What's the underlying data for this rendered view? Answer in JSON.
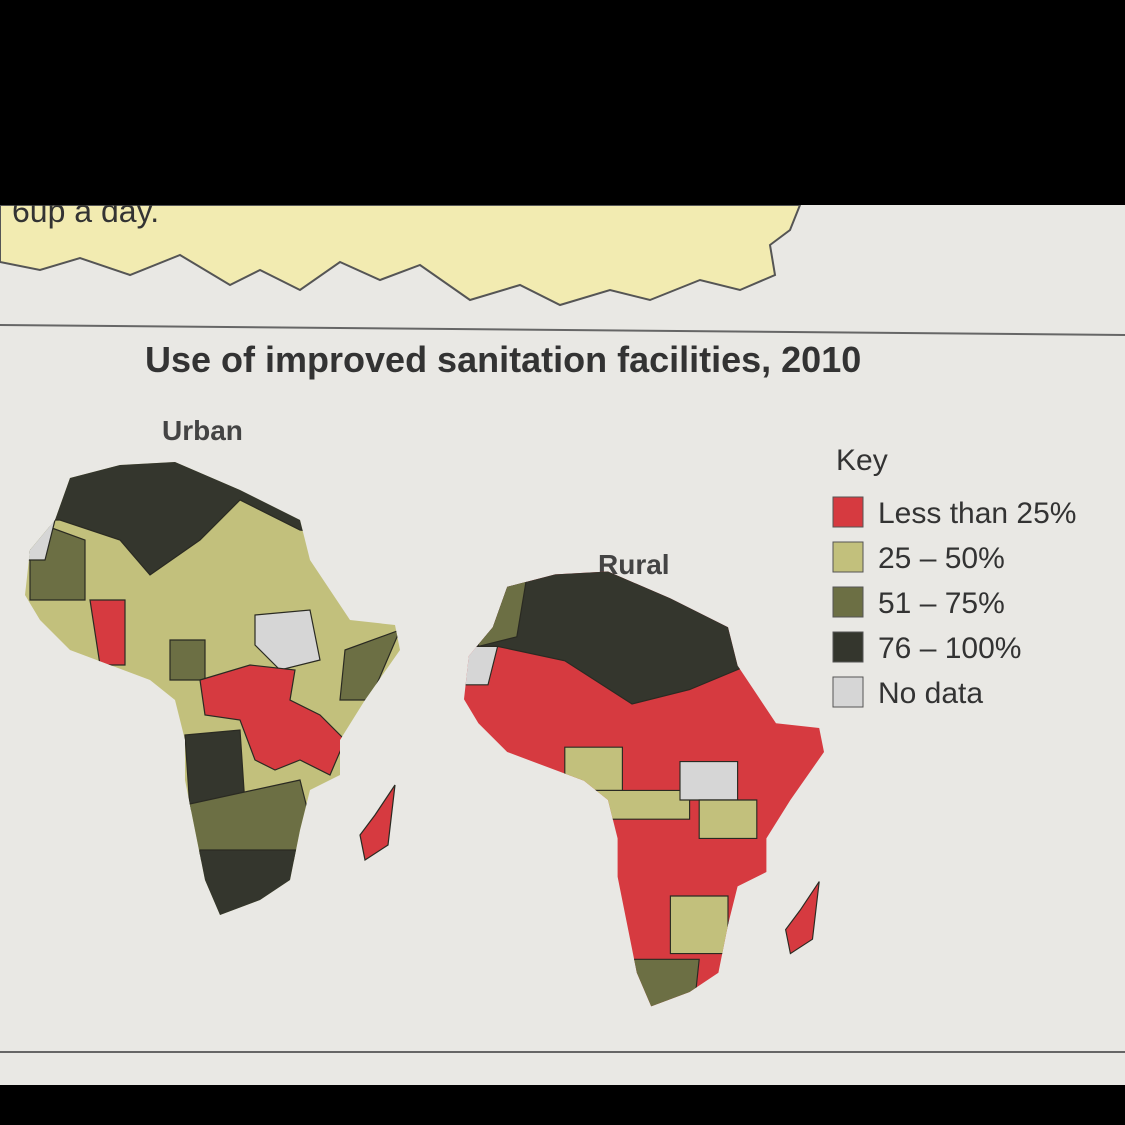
{
  "caption_fragment": "6up a day.",
  "title": "Use of improved sanitation facilities, 2010",
  "maps": [
    {
      "label": "Urban"
    },
    {
      "label": "Rural"
    }
  ],
  "legend": {
    "title": "Key",
    "items": [
      {
        "label": "Less than 25%",
        "color": "#d63a40"
      },
      {
        "label": "25 – 50%",
        "color": "#c2c07c"
      },
      {
        "label": "51 – 75%",
        "color": "#6c6f44"
      },
      {
        "label": "76 – 100%",
        "color": "#34362d"
      },
      {
        "label": "No data",
        "color": "#d6d6d6"
      }
    ]
  }
}
